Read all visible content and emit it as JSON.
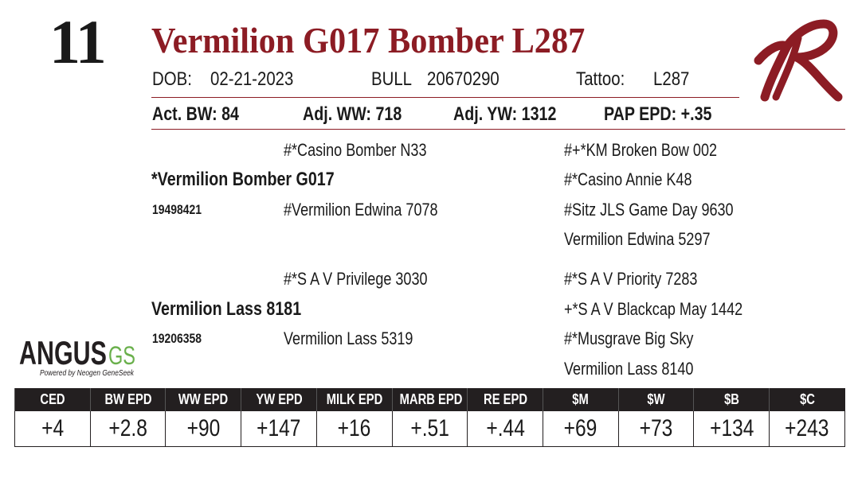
{
  "lot": {
    "number": "11"
  },
  "animal": {
    "name": "Vermilion G017 Bomber L287"
  },
  "info_row": {
    "dob_label": "DOB:",
    "dob_value": "02-21-2023",
    "sex": "BULL",
    "reg_number": "20670290",
    "tattoo_label": "Tattoo:",
    "tattoo_value": "L287"
  },
  "performance": {
    "act_bw": "Act. BW: 84",
    "adj_ww": "Adj. WW: 718",
    "adj_yw": "Adj. YW: 1312",
    "pap_epd": "PAP EPD: +.35"
  },
  "pedigree": {
    "sire": {
      "name": "*Vermilion Bomber G017",
      "reg": "19498421"
    },
    "sire_sire": "#*Casino Bomber N33",
    "sire_dam": "#Vermilion Edwina 7078",
    "sire_sire_sire": "#+*KM Broken Bow 002",
    "sire_sire_dam": "#*Casino Annie K48",
    "sire_dam_sire": "#Sitz JLS Game Day 9630",
    "sire_dam_dam": "Vermilion Edwina 5297",
    "dam": {
      "name": "Vermilion Lass 8181",
      "reg": "19206358"
    },
    "dam_sire": "#*S A V Privilege 3030",
    "dam_dam": "Vermilion Lass 5319",
    "dam_sire_sire": "#*S A V Priority 7283",
    "dam_sire_dam": "+*S A V Blackcap May 1442",
    "dam_dam_sire": "#*Musgrave Big Sky",
    "dam_dam_dam": "Vermilion Lass 8140"
  },
  "logos": {
    "angus_word": "ANGUS",
    "gs_word": "GS",
    "tagline": "Powered by Neogen GeneSeek",
    "brand_color": "#8c1c24",
    "gs_color": "#6ab04c"
  },
  "epd": {
    "headers": [
      "CED",
      "BW EPD",
      "WW EPD",
      "YW EPD",
      "MILK EPD",
      "MARB EPD",
      "RE EPD",
      "$M",
      "$W",
      "$B",
      "$C"
    ],
    "values": [
      "+4",
      "+2.8",
      "+90",
      "+147",
      "+16",
      "+.51",
      "+.44",
      "+69",
      "+73",
      "+134",
      "+243"
    ]
  }
}
